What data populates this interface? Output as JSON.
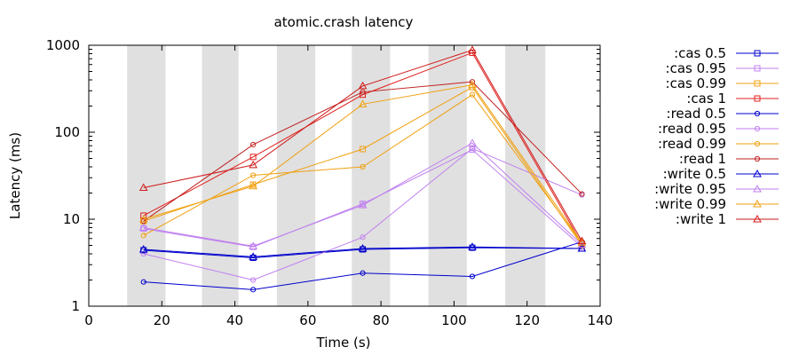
{
  "chart_data": {
    "type": "line",
    "title": "atomic.crash latency",
    "xlabel": "Time (s)",
    "ylabel": "Latency (ms)",
    "xlim": [
      0,
      140
    ],
    "ylim": [
      1,
      1000
    ],
    "yscale": "log",
    "x_ticks": [
      "0",
      "20",
      "40",
      "60",
      "80",
      "100",
      "120",
      "140"
    ],
    "y_ticks": [
      "1",
      "10",
      "100",
      "1000"
    ],
    "grid": false,
    "legend_position": "right",
    "shaded_intervals": [
      [
        10.5,
        21
      ],
      [
        31,
        41
      ],
      [
        51.5,
        62
      ],
      [
        72,
        82.5
      ],
      [
        93,
        103.5
      ],
      [
        114,
        125
      ]
    ],
    "series": [
      {
        "name": ":cas 0.5",
        "color": "#0000cc",
        "marker": "square",
        "x": [
          15,
          45,
          75,
          105,
          135
        ],
        "y": [
          4.4,
          3.6,
          4.5,
          4.7,
          4.6
        ]
      },
      {
        "name": ":cas 0.95",
        "color": "#c080f0",
        "marker": "square",
        "x": [
          15,
          45,
          75,
          105,
          135
        ],
        "y": [
          7.8,
          4.8,
          15,
          63,
          4.8
        ]
      },
      {
        "name": ":cas 0.99",
        "color": "#f0a010",
        "marker": "square",
        "x": [
          15,
          45,
          75,
          105,
          135
        ],
        "y": [
          9.5,
          25,
          64,
          330,
          5.0
        ]
      },
      {
        "name": ":cas 1",
        "color": "#e0201c",
        "marker": "square",
        "x": [
          15,
          45,
          75,
          105,
          135
        ],
        "y": [
          11,
          52,
          270,
          820,
          5.2
        ]
      },
      {
        "name": ":read 0.5",
        "color": "#0000cc",
        "marker": "circle",
        "x": [
          15,
          45,
          75,
          105,
          135
        ],
        "y": [
          1.9,
          1.55,
          2.4,
          2.2,
          5.5
        ]
      },
      {
        "name": ":read 0.95",
        "color": "#c080f0",
        "marker": "circle",
        "x": [
          15,
          45,
          75,
          105,
          135
        ],
        "y": [
          4.0,
          2.0,
          6.2,
          65,
          19
        ]
      },
      {
        "name": ":read 0.99",
        "color": "#f0a010",
        "marker": "circle",
        "x": [
          15,
          45,
          75,
          105,
          135
        ],
        "y": [
          6.5,
          32,
          40,
          270,
          5.3
        ]
      },
      {
        "name": ":read 1",
        "color": "#c02020",
        "marker": "circle",
        "x": [
          15,
          45,
          75,
          105,
          135
        ],
        "y": [
          9.5,
          72,
          290,
          380,
          19.5
        ]
      },
      {
        "name": ":write 0.5",
        "color": "#0000cc",
        "marker": "triangle",
        "x": [
          15,
          45,
          75,
          105,
          135
        ],
        "y": [
          4.5,
          3.7,
          4.6,
          4.8,
          4.6
        ]
      },
      {
        "name": ":write 0.95",
        "color": "#c080f0",
        "marker": "triangle",
        "x": [
          15,
          45,
          75,
          105,
          135
        ],
        "y": [
          8.0,
          4.9,
          14.5,
          75,
          5.1
        ]
      },
      {
        "name": ":write 0.99",
        "color": "#f0a010",
        "marker": "triangle",
        "x": [
          15,
          45,
          75,
          105,
          135
        ],
        "y": [
          10,
          24,
          210,
          350,
          5.4
        ]
      },
      {
        "name": ":write 1",
        "color": "#d01818",
        "marker": "triangle",
        "x": [
          15,
          45,
          75,
          105,
          135
        ],
        "y": [
          23,
          42,
          340,
          880,
          5.6
        ]
      }
    ]
  }
}
